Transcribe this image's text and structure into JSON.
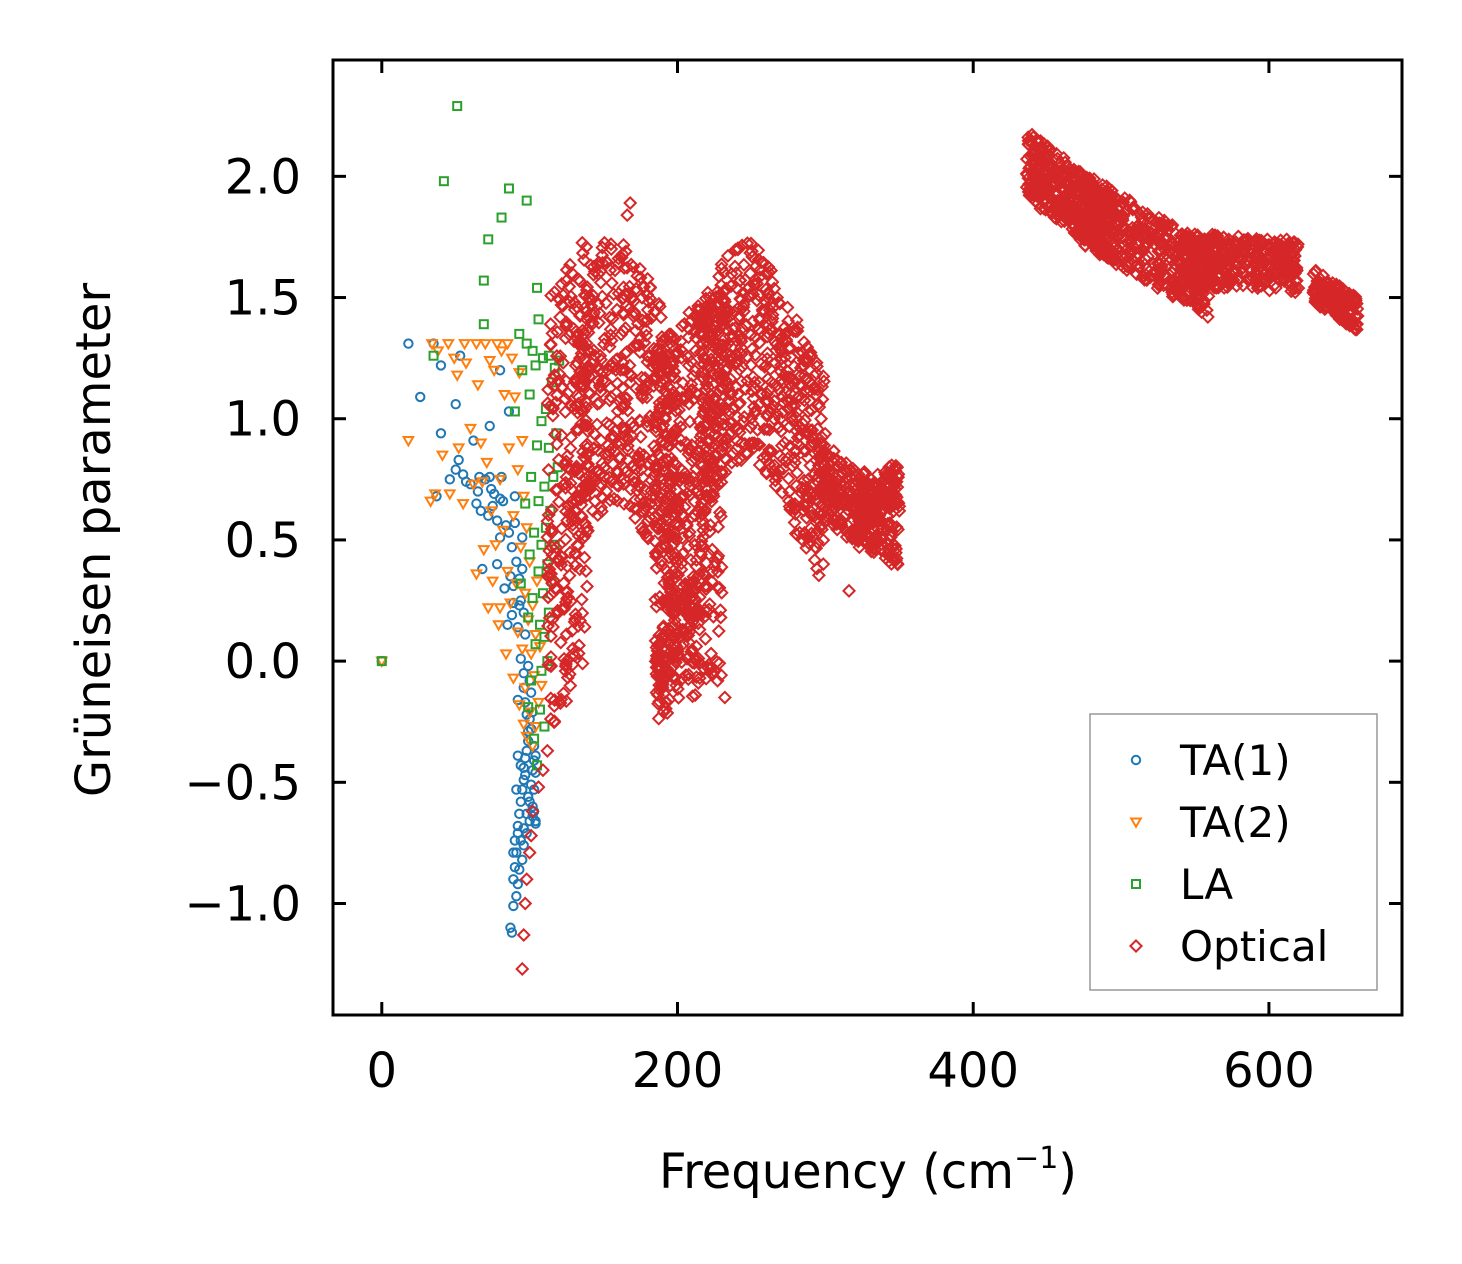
{
  "chart_data": {
    "type": "scatter",
    "title": "",
    "xlabel": "Frequency (cm",
    "xlabel_sup": "−1",
    "xlabel_close": ")",
    "ylabel": "Grüneisen parameter",
    "xlim": [
      -33,
      690
    ],
    "ylim": [
      -1.46,
      2.48
    ],
    "xticks": [
      0,
      200,
      400,
      600
    ],
    "xtick_labels": [
      "0",
      "200",
      "400",
      "600"
    ],
    "yticks": [
      -1.0,
      -0.5,
      0.0,
      0.5,
      1.0,
      1.5,
      2.0
    ],
    "ytick_labels": [
      "−1.0",
      "−0.5",
      "0.0",
      "0.5",
      "1.0",
      "1.5",
      "2.0"
    ],
    "grid": false,
    "legend_position": "bottom-right",
    "series": [
      {
        "name": "TA(1)",
        "marker": "circle",
        "color": "#1f77b4",
        "points": [
          [
            0,
            0
          ],
          [
            18,
            1.31
          ],
          [
            26,
            1.09
          ],
          [
            35,
            1.31
          ],
          [
            37,
            0.68
          ],
          [
            40,
            1.22
          ],
          [
            40,
            0.94
          ],
          [
            46,
            0.75
          ],
          [
            50,
            1.06
          ],
          [
            50,
            0.79
          ],
          [
            52,
            0.83
          ],
          [
            53,
            1.26
          ],
          [
            55,
            0.77
          ],
          [
            57,
            0.74
          ],
          [
            60,
            0.73
          ],
          [
            62,
            0.91
          ],
          [
            64,
            0.65
          ],
          [
            65,
            0.7
          ],
          [
            66,
            0.76
          ],
          [
            67,
            0.62
          ],
          [
            68,
            0.38
          ],
          [
            70,
            0.75
          ],
          [
            72,
            0.6
          ],
          [
            73,
            0.76
          ],
          [
            73,
            0.97
          ],
          [
            74,
            0.71
          ],
          [
            75,
            0.64
          ],
          [
            76,
            0.69
          ],
          [
            78,
            0.58
          ],
          [
            78,
            0.4
          ],
          [
            80,
            1.2
          ],
          [
            80,
            0.67
          ],
          [
            80,
            0.51
          ],
          [
            81,
            0.76
          ],
          [
            82,
            0.66
          ],
          [
            83,
            0.3
          ],
          [
            84,
            0.56
          ],
          [
            85,
            0.15
          ],
          [
            86,
            1.03
          ],
          [
            86,
            0.53
          ],
          [
            87,
            0.35
          ],
          [
            88,
            0.47
          ],
          [
            88,
            0.19
          ],
          [
            89,
            0.24
          ],
          [
            89,
            0.31
          ],
          [
            90,
            0.68
          ],
          [
            90,
            0.57
          ],
          [
            91,
            0.41
          ],
          [
            92,
            0.14
          ],
          [
            92,
            -0.16
          ],
          [
            93,
            0.23
          ],
          [
            93,
            0.34
          ],
          [
            94,
            0.25
          ],
          [
            94,
            0.01
          ],
          [
            95,
            0.38
          ],
          [
            95,
            0.51
          ],
          [
            96,
            0.2
          ],
          [
            96,
            -0.05
          ],
          [
            96,
            -0.11
          ],
          [
            97,
            0.11
          ],
          [
            97,
            -0.17
          ],
          [
            98,
            -0.22
          ],
          [
            99,
            -0.02
          ],
          [
            99,
            -0.29
          ],
          [
            100,
            -0.24
          ],
          [
            100,
            -0.08
          ],
          [
            101,
            -0.13
          ],
          [
            102,
            -0.21
          ],
          [
            103,
            -0.35
          ],
          [
            104,
            -0.39
          ],
          [
            104,
            -0.46
          ],
          [
            103,
            -0.53
          ],
          [
            102,
            -0.6
          ],
          [
            100,
            -0.66
          ],
          [
            98,
            -0.71
          ],
          [
            96,
            -0.76
          ],
          [
            95,
            -0.82
          ],
          [
            93,
            -0.86
          ],
          [
            92,
            -0.92
          ],
          [
            91,
            -0.97
          ],
          [
            89,
            -1.01
          ],
          [
            87,
            -1.1
          ],
          [
            88,
            -1.12
          ],
          [
            89,
            -0.79
          ],
          [
            90,
            -0.74
          ],
          [
            92,
            -0.68
          ],
          [
            93,
            -0.63
          ],
          [
            94,
            -0.58
          ],
          [
            95,
            -0.53
          ],
          [
            96,
            -0.49
          ],
          [
            96,
            -0.44
          ],
          [
            97,
            -0.4
          ],
          [
            98,
            -0.37
          ],
          [
            99,
            -0.33
          ],
          [
            101,
            -0.28
          ],
          [
            103,
            -0.62
          ],
          [
            104,
            -0.66
          ],
          [
            104,
            -0.67
          ],
          [
            102,
            -0.64
          ],
          [
            99,
            -0.56
          ],
          [
            97,
            -0.47
          ],
          [
            94,
            -0.43
          ],
          [
            92,
            -0.39
          ],
          [
            91,
            -0.53
          ],
          [
            90,
            -0.85
          ],
          [
            89,
            -0.9
          ],
          [
            91,
            -0.79
          ],
          [
            92,
            -0.71
          ],
          [
            94,
            -0.74
          ],
          [
            96,
            -0.69
          ],
          [
            98,
            -0.63
          ],
          [
            100,
            -0.58
          ],
          [
            101,
            -0.51
          ],
          [
            102,
            -0.45
          ],
          [
            103,
            -0.41
          ]
        ]
      },
      {
        "name": "TA(2)",
        "marker": "triangle-down",
        "color": "#ff7f0e",
        "points": [
          [
            0,
            0
          ],
          [
            18,
            0.91
          ],
          [
            34,
            1.31
          ],
          [
            33,
            0.66
          ],
          [
            36,
            0.69
          ],
          [
            38,
            1.28
          ],
          [
            41,
            0.85
          ],
          [
            45,
            1.31
          ],
          [
            46,
            0.69
          ],
          [
            49,
            1.25
          ],
          [
            51,
            1.18
          ],
          [
            52,
            0.88
          ],
          [
            55,
            0.65
          ],
          [
            56,
            1.31
          ],
          [
            57,
            1.23
          ],
          [
            60,
            0.96
          ],
          [
            62,
            0.73
          ],
          [
            64,
            1.31
          ],
          [
            64,
            0.36
          ],
          [
            65,
            1.14
          ],
          [
            67,
            0.9
          ],
          [
            68,
            0.74
          ],
          [
            69,
            0.46
          ],
          [
            70,
            1.31
          ],
          [
            71,
            0.82
          ],
          [
            72,
            0.22
          ],
          [
            73,
            1.24
          ],
          [
            74,
            0.62
          ],
          [
            75,
            0.33
          ],
          [
            76,
            1.2
          ],
          [
            77,
            0.48
          ],
          [
            78,
            1.31
          ],
          [
            79,
            0.15
          ],
          [
            80,
            0.75
          ],
          [
            80,
            0.22
          ],
          [
            81,
            1.28
          ],
          [
            82,
            0.54
          ],
          [
            83,
            1.1
          ],
          [
            84,
            0.03
          ],
          [
            85,
            1.31
          ],
          [
            85,
            0.37
          ],
          [
            86,
            0.88
          ],
          [
            87,
            0.24
          ],
          [
            88,
            1.25
          ],
          [
            89,
            0.6
          ],
          [
            89,
            -0.07
          ],
          [
            90,
            1.09
          ],
          [
            91,
            0.32
          ],
          [
            92,
            0.79
          ],
          [
            92,
            0.12
          ],
          [
            93,
            1.19
          ],
          [
            93,
            -0.18
          ],
          [
            94,
            0.47
          ],
          [
            95,
            0.91
          ],
          [
            95,
            0.05
          ],
          [
            96,
            0.68
          ],
          [
            96,
            -0.26
          ],
          [
            97,
            0.28
          ],
          [
            97,
            -0.11
          ],
          [
            98,
            0.55
          ],
          [
            98,
            -0.31
          ],
          [
            99,
            0.17
          ],
          [
            100,
            0.41
          ],
          [
            100,
            -0.21
          ],
          [
            101,
            0.03
          ],
          [
            102,
            0.23
          ],
          [
            102,
            -0.35
          ],
          [
            103,
            -0.06
          ],
          [
            104,
            0.11
          ],
          [
            104,
            -0.27
          ],
          [
            105,
            0.33
          ],
          [
            106,
            -0.17
          ],
          [
            107,
            0.06
          ],
          [
            108,
            -0.1
          ]
        ]
      },
      {
        "name": "LA",
        "marker": "square",
        "color": "#2ca02c",
        "points": [
          [
            0,
            0
          ],
          [
            35,
            1.26
          ],
          [
            42,
            1.98
          ],
          [
            51,
            2.29
          ],
          [
            69,
            1.57
          ],
          [
            69,
            1.39
          ],
          [
            72,
            1.74
          ],
          [
            81,
            1.83
          ],
          [
            86,
            1.95
          ],
          [
            90,
            1.03
          ],
          [
            93,
            1.35
          ],
          [
            94,
            0.32
          ],
          [
            95,
            1.2
          ],
          [
            97,
            0.65
          ],
          [
            98,
            1.9
          ],
          [
            98,
            1.31
          ],
          [
            99,
            0.18
          ],
          [
            99,
            -0.19
          ],
          [
            100,
            1.1
          ],
          [
            100,
            0.44
          ],
          [
            101,
            0.76
          ],
          [
            101,
            -0.08
          ],
          [
            102,
            1.28
          ],
          [
            102,
            0.26
          ],
          [
            103,
            0.53
          ],
          [
            103,
            -0.32
          ],
          [
            104,
            1.22
          ],
          [
            104,
            0.07
          ],
          [
            105,
            0.89
          ],
          [
            105,
            1.54
          ],
          [
            105,
            -0.43
          ],
          [
            106,
            0.37
          ],
          [
            106,
            1.41
          ],
          [
            106,
            0.66
          ],
          [
            107,
            -0.2
          ],
          [
            107,
            0.15
          ],
          [
            108,
            0.99
          ],
          [
            108,
            0.48
          ],
          [
            108,
            -0.04
          ],
          [
            109,
            1.25
          ],
          [
            109,
            0.28
          ],
          [
            110,
            0.72
          ],
          [
            110,
            0.1
          ],
          [
            110,
            -0.27
          ],
          [
            111,
            1.04
          ],
          [
            111,
            0.55
          ],
          [
            112,
            0.4
          ],
          [
            112,
            0.0
          ],
          [
            113,
            0.88
          ],
          [
            113,
            0.2
          ],
          [
            113,
            1.26
          ],
          [
            114,
            0.62
          ],
          [
            115,
            0.33
          ],
          [
            115,
            1.15
          ],
          [
            116,
            0.76
          ],
          [
            117,
            0.48
          ],
          [
            117,
            1.21
          ],
          [
            118,
            0.94
          ],
          [
            119,
            0.8
          ],
          [
            120,
            1.24
          ]
        ]
      },
      {
        "name": "Optical",
        "marker": "diamond",
        "color": "#d62728",
        "points": []
      }
    ]
  },
  "legend": {
    "items": [
      "TA(1)",
      "TA(2)",
      "LA",
      "Optical"
    ]
  }
}
